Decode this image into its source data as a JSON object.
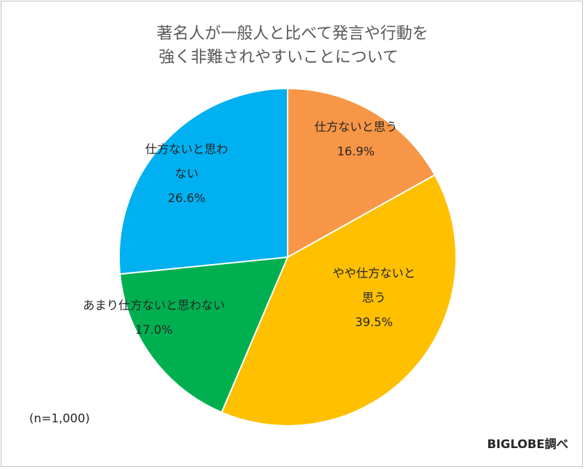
{
  "chart_data": {
    "type": "pie",
    "title_line1": "著名人が一般人と比べて発言や行動を",
    "title_line2": "強く非難されやすいことについて",
    "slices": [
      {
        "label_lines": [
          "仕方ないと思う"
        ],
        "value": 16.9,
        "value_label": "16.9%",
        "color": "#F79646"
      },
      {
        "label_lines": [
          "やや仕方ないと",
          "思う"
        ],
        "value": 39.5,
        "value_label": "39.5%",
        "color": "#FFC000"
      },
      {
        "label_lines": [
          "あまり仕方ないと思わない"
        ],
        "value": 17.0,
        "value_label": "17.0%",
        "color": "#00B050"
      },
      {
        "label_lines": [
          "仕方ないと思わ",
          "ない"
        ],
        "value": 26.6,
        "value_label": "26.6%",
        "color": "#00B0F0"
      }
    ],
    "start": "12 o'clock",
    "direction": "clockwise"
  },
  "note": "(n=1,000)",
  "source": "BIGLOBE調べ"
}
